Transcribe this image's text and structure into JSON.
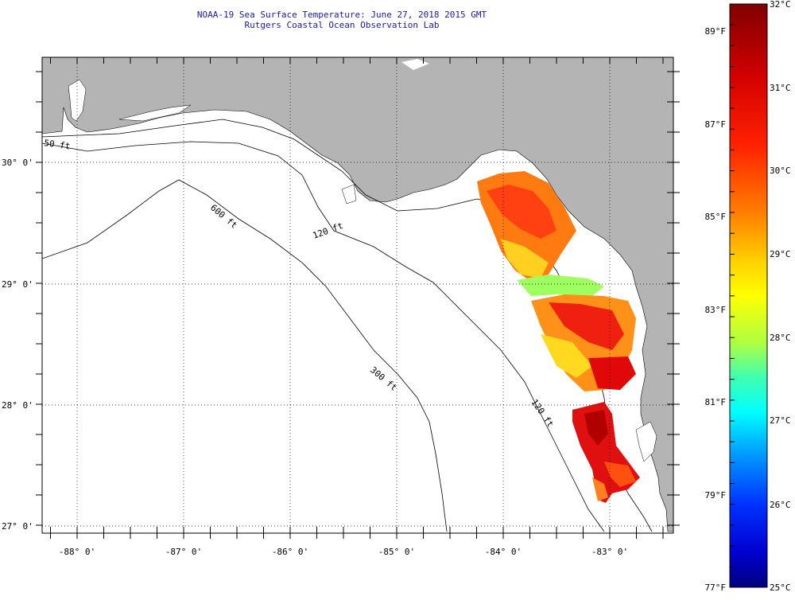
{
  "title": {
    "line1": "NOAA-19 Sea Surface Temperature:  June 27, 2018 2015 GMT",
    "line2": "Rutgers Coastal Ocean Observation Lab"
  },
  "axes": {
    "lat_labels": [
      "30° 0'",
      "29° 0'",
      "28° 0'",
      "27° 0'"
    ],
    "lon_labels": [
      "-88° 0'",
      "-87° 0'",
      "-86° 0'",
      "-85° 0'",
      "-84° 0'",
      "-83° 0'"
    ]
  },
  "contours": {
    "c50": "50 ft",
    "c120": "120 ft",
    "c600": "600 ft",
    "c300": "300 ft",
    "c120b": "120 ft"
  },
  "colorbar": {
    "celsius": [
      "32°C",
      "31°C",
      "30°C",
      "29°C",
      "28°C",
      "27°C",
      "26°C",
      "25°C"
    ],
    "fahrenheit": [
      "89°F",
      "87°F",
      "85°F",
      "83°F",
      "81°F",
      "79°F",
      "77°F"
    ]
  },
  "colors": {
    "land": "#b4b4b4",
    "water": "#ffffff",
    "title": "#1a1aa6"
  }
}
